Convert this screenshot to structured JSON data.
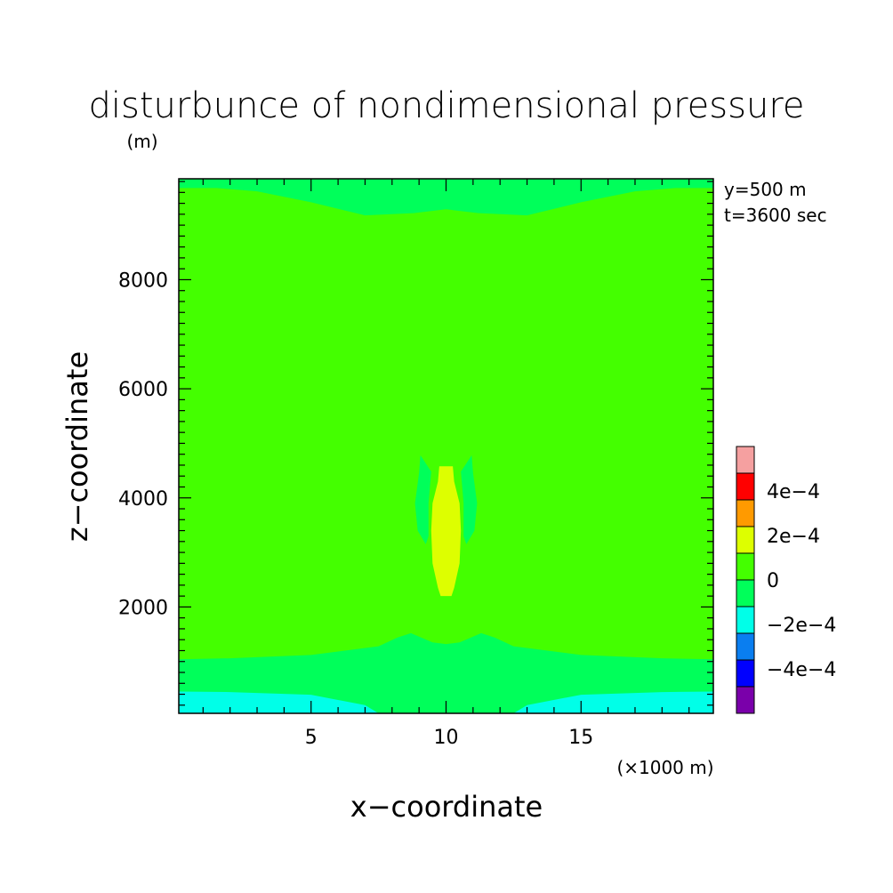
{
  "chart_data": {
    "type": "heatmap",
    "title": "disturbunce of nondimensional pressure",
    "units": "(m)",
    "xlabel": "x−coordinate",
    "ylabel": "z−coordinate",
    "x_unit_label": "(×1000 m)",
    "xlim": [
      0.1,
      19.9
    ],
    "ylim": [
      50,
      9850
    ],
    "x_ticks": [
      {
        "value": 5,
        "label": "5"
      },
      {
        "value": 10,
        "label": "10"
      },
      {
        "value": 15,
        "label": "15"
      }
    ],
    "y_ticks": [
      {
        "value": 2000,
        "label": "2000"
      },
      {
        "value": 4000,
        "label": "4000"
      },
      {
        "value": 6000,
        "label": "6000"
      },
      {
        "value": 8000,
        "label": "8000"
      }
    ],
    "info_lines": [
      "y=500 m",
      "t=3600 sec"
    ],
    "colorbar": {
      "levels": [
        -0.0006,
        -0.0004,
        -0.0002,
        0,
        0.0002,
        0.0004,
        0.0006
      ],
      "labels": [
        {
          "value": -0.0004,
          "text": "−4e−4"
        },
        {
          "value": -0.0002,
          "text": "−2e−4"
        },
        {
          "value": 0,
          "text": "0"
        },
        {
          "value": 0.0002,
          "text": "2e−4"
        },
        {
          "value": 0.0004,
          "text": "4e−4"
        }
      ],
      "colors": [
        "#7a00aa",
        "#0000ff",
        "#0a7ef0",
        "#00ffe8",
        "#00ff5a",
        "#44ff00",
        "#ddff00",
        "#ff9a00",
        "#ff0000",
        "#f5a0a0"
      ]
    },
    "background_color": "#44ff00",
    "regions": [
      {
        "name": "top-band",
        "color": "#00ff5a",
        "polygon": [
          [
            0.1,
            9850
          ],
          [
            19.9,
            9850
          ],
          [
            19.9,
            9680
          ],
          [
            18.5,
            9680
          ],
          [
            17,
            9620
          ],
          [
            15,
            9420
          ],
          [
            13,
            9180
          ],
          [
            11.2,
            9220
          ],
          [
            10,
            9290
          ],
          [
            8.8,
            9220
          ],
          [
            7,
            9180
          ],
          [
            5,
            9420
          ],
          [
            3,
            9620
          ],
          [
            1.5,
            9680
          ],
          [
            0.1,
            9680
          ]
        ]
      },
      {
        "name": "bottom-band",
        "color": "#00ff5a",
        "polygon": [
          [
            0.1,
            50
          ],
          [
            19.9,
            50
          ],
          [
            19.9,
            1040
          ],
          [
            18,
            1060
          ],
          [
            15,
            1120
          ],
          [
            12.5,
            1280
          ],
          [
            11.8,
            1440
          ],
          [
            11.3,
            1520
          ],
          [
            10.5,
            1350
          ],
          [
            10,
            1320
          ],
          [
            9.5,
            1350
          ],
          [
            8.7,
            1520
          ],
          [
            8.2,
            1440
          ],
          [
            7.5,
            1280
          ],
          [
            5,
            1120
          ],
          [
            2,
            1060
          ],
          [
            0.1,
            1040
          ]
        ]
      },
      {
        "name": "bottom-cyan",
        "color": "#00ffe8",
        "polygon": [
          [
            0.1,
            50
          ],
          [
            19.9,
            50
          ],
          [
            19.9,
            450
          ],
          [
            18,
            440
          ],
          [
            15,
            390
          ],
          [
            13,
            200
          ],
          [
            12.5,
            50
          ],
          [
            7.5,
            50
          ],
          [
            7,
            200
          ],
          [
            5,
            390
          ],
          [
            2,
            440
          ],
          [
            0.1,
            450
          ]
        ]
      },
      {
        "name": "left-lobe",
        "color": "#00ff5a",
        "polygon": [
          [
            9.05,
            4780
          ],
          [
            9.45,
            4480
          ],
          [
            9.35,
            3900
          ],
          [
            9.35,
            3300
          ],
          [
            9.25,
            3150
          ],
          [
            8.95,
            3400
          ],
          [
            8.85,
            3900
          ],
          [
            9.0,
            4450
          ]
        ]
      },
      {
        "name": "right-lobe",
        "color": "#00ff5a",
        "polygon": [
          [
            10.95,
            4780
          ],
          [
            10.55,
            4480
          ],
          [
            10.65,
            3900
          ],
          [
            10.65,
            3300
          ],
          [
            10.75,
            3150
          ],
          [
            11.05,
            3400
          ],
          [
            11.15,
            3900
          ],
          [
            11.0,
            4450
          ]
        ]
      },
      {
        "name": "core",
        "color": "#ddff00",
        "polygon": [
          [
            9.75,
            4580
          ],
          [
            10.25,
            4580
          ],
          [
            10.3,
            4300
          ],
          [
            10.5,
            3900
          ],
          [
            10.55,
            3400
          ],
          [
            10.5,
            2800
          ],
          [
            10.3,
            2350
          ],
          [
            10.2,
            2200
          ],
          [
            9.8,
            2200
          ],
          [
            9.7,
            2350
          ],
          [
            9.5,
            2800
          ],
          [
            9.45,
            3400
          ],
          [
            9.5,
            3900
          ],
          [
            9.7,
            4300
          ]
        ]
      }
    ]
  }
}
